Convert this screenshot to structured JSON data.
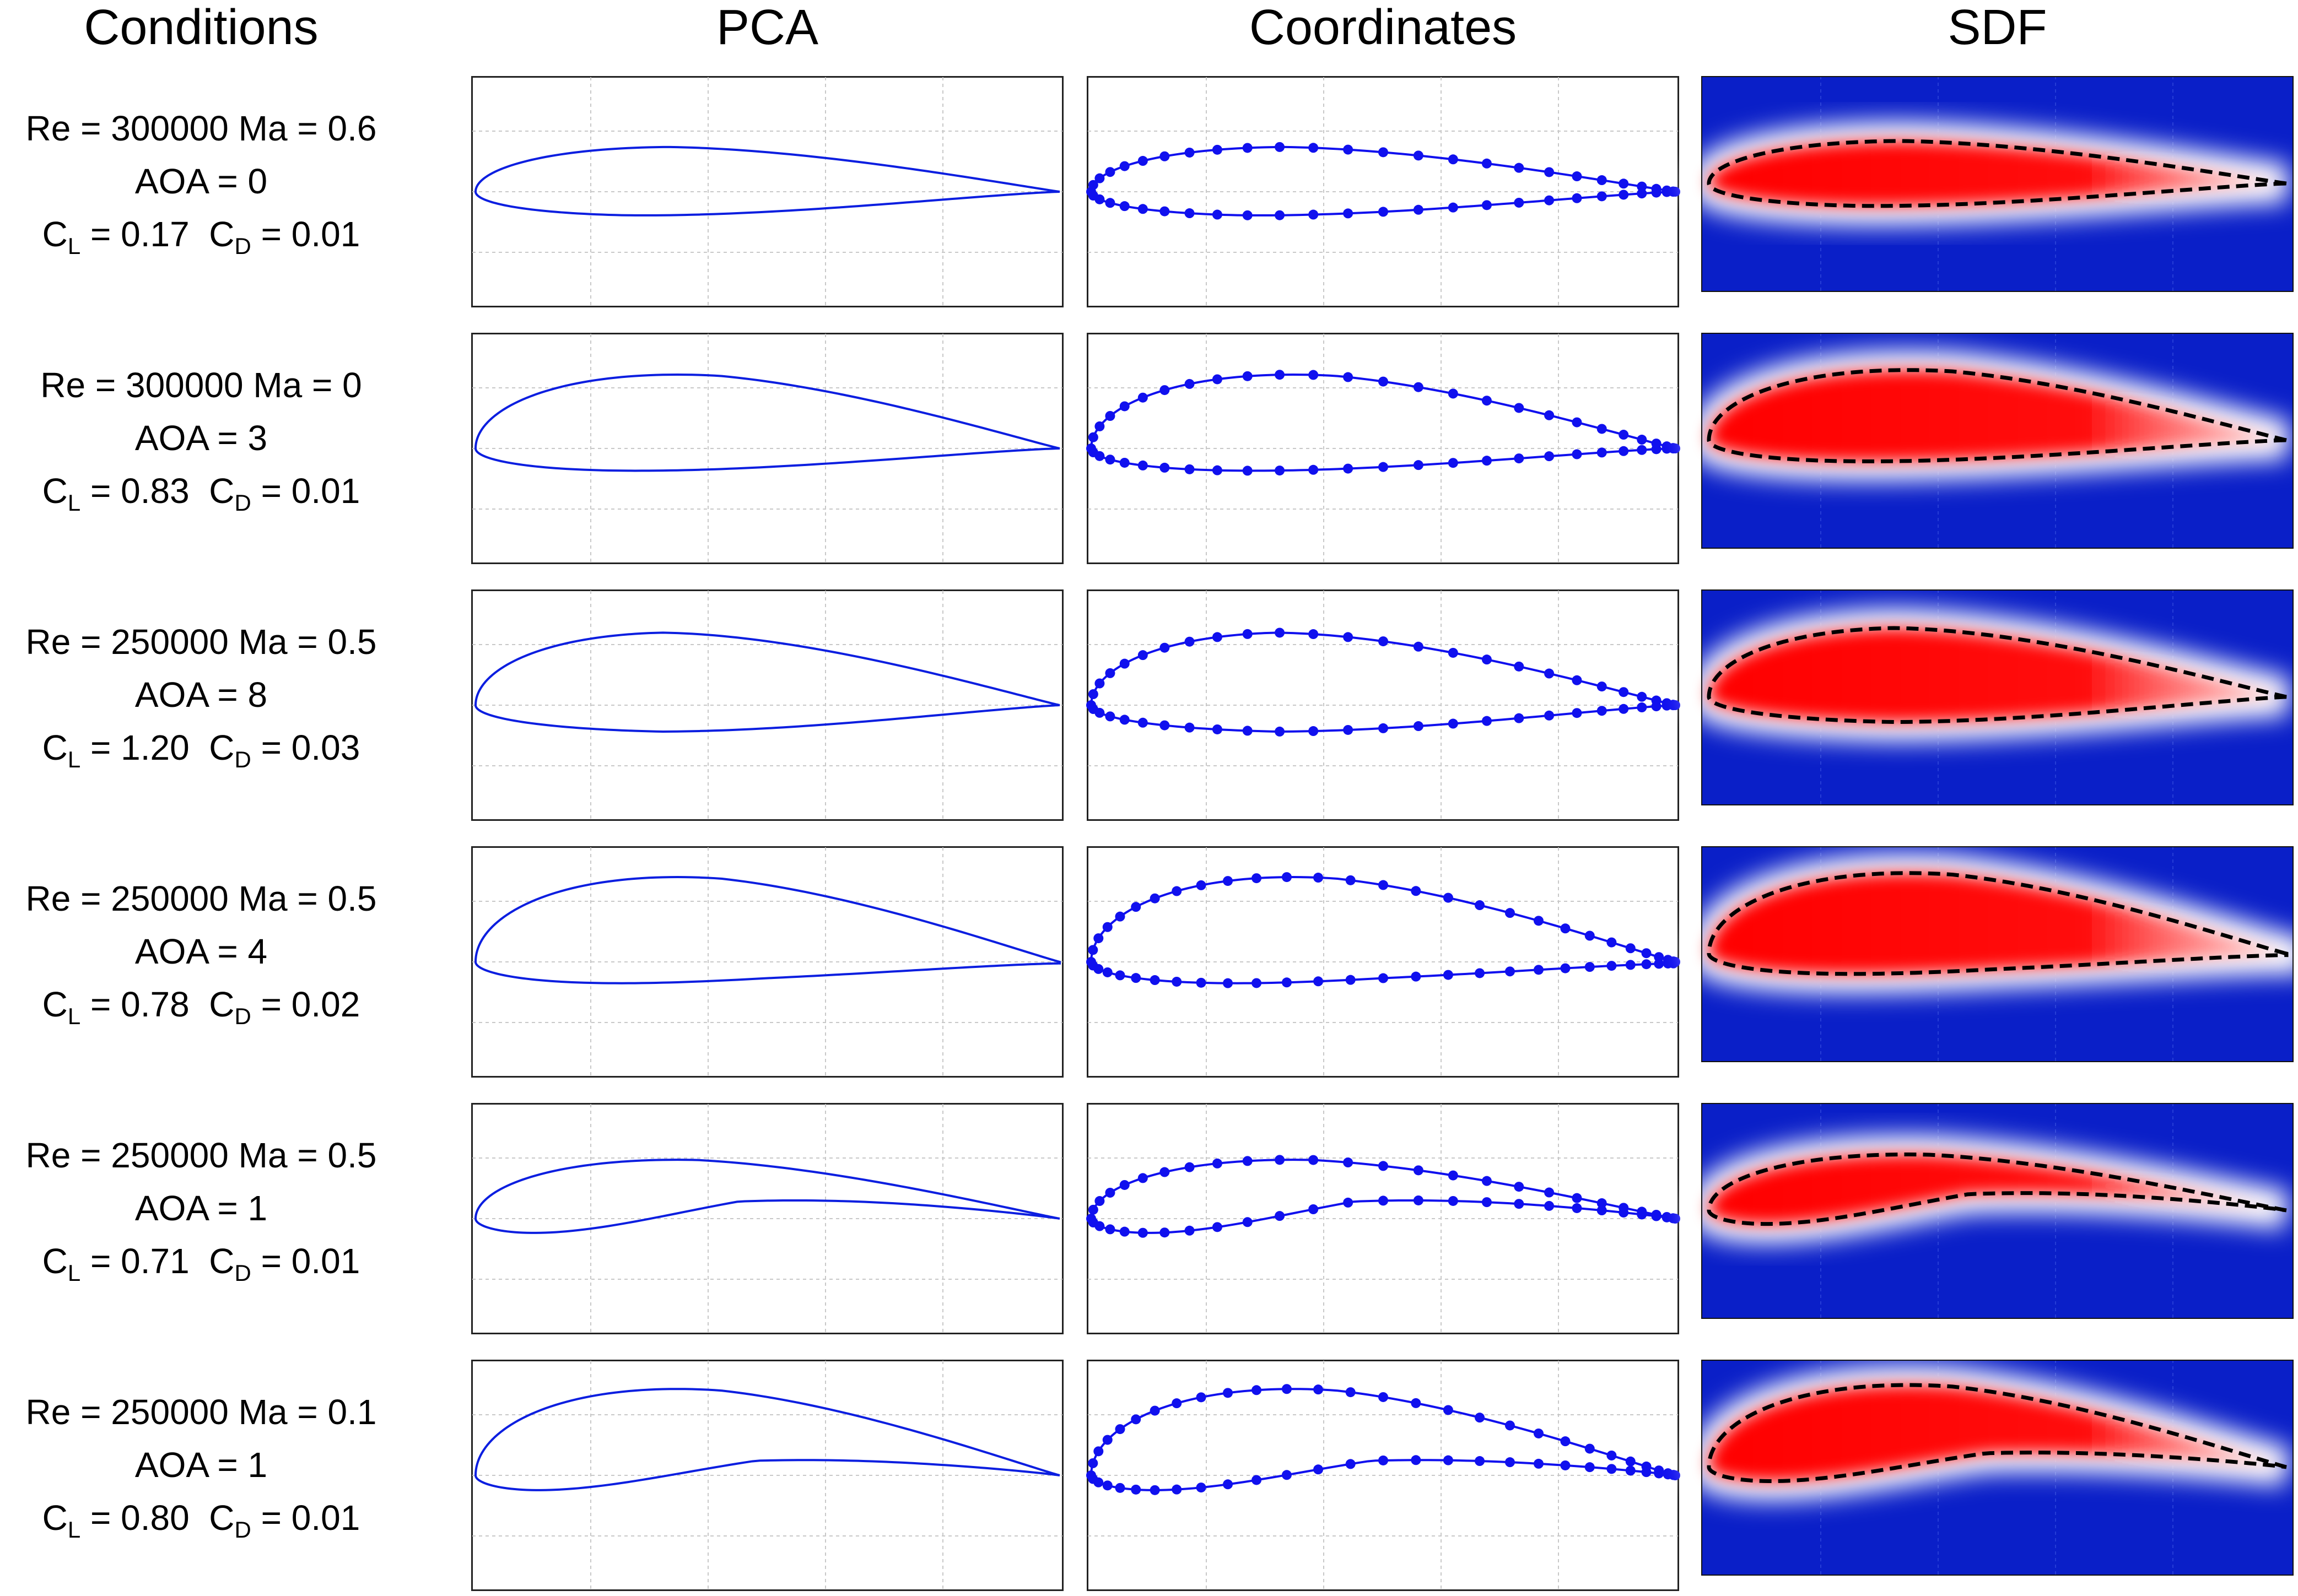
{
  "headers": {
    "conditions": "Conditions",
    "pca": "PCA",
    "coordinates": "Coordinates",
    "sdf": "SDF"
  },
  "colors": {
    "curve": "#0b1ee0",
    "points": "#1010ee",
    "sdf_background": "#0a1fc8",
    "sdf_fill": "#ff0000",
    "contour": "#000000",
    "grid": "#c8c8c8"
  },
  "rows": [
    {
      "re_ma": "Re = 300000  Ma = 0.6",
      "aoa": "AOA = 0",
      "cl": "0.17",
      "cd": "0.01",
      "shape": {
        "upper_peak": 0.145,
        "upper_pos": 0.33,
        "lower_peak": -0.075,
        "lower_pos": 0.25,
        "lower_te": 0.0,
        "le_y": 0.0,
        "points": 52
      }
    },
    {
      "re_ma": "Re = 300000  Ma = 0",
      "aoa": "AOA = 3",
      "cl": "0.83",
      "cd": "0.01",
      "shape": {
        "upper_peak": 0.235,
        "upper_pos": 0.42,
        "lower_peak": -0.07,
        "lower_pos": 0.18,
        "lower_te": 0.0,
        "le_y": 0.0,
        "points": 52
      }
    },
    {
      "re_ma": "Re = 250000  Ma = 0.5",
      "aoa": "AOA = 8",
      "cl": "1.20",
      "cd": "0.03",
      "shape": {
        "upper_peak": 0.235,
        "upper_pos": 0.32,
        "lower_peak": -0.085,
        "lower_pos": 0.32,
        "lower_te": 0.0,
        "le_y": 0.0,
        "points": 52
      }
    },
    {
      "re_ma": "Re = 250000  Ma = 0.5",
      "aoa": "AOA = 4",
      "cl": "0.78",
      "cd": "0.02",
      "shape": {
        "upper_peak": 0.27,
        "upper_pos": 0.42,
        "lower_peak": -0.06,
        "lower_pos": 0.5,
        "lower_te": -0.005,
        "le_y": 0.0,
        "points": 56
      }
    },
    {
      "re_ma": "Re = 250000  Ma = 0.5",
      "aoa": "AOA = 1",
      "cl": "0.71",
      "cd": "0.01",
      "shape": {
        "upper_peak": 0.19,
        "upper_pos": 0.38,
        "lower_peak": 0.05,
        "lower_pos": 0.45,
        "lower_te": 0.0,
        "le_y": 0.0,
        "points": 52
      }
    },
    {
      "re_ma": "Re = 250000  Ma = 0.1",
      "aoa": "AOA = 1",
      "cl": "0.80",
      "cd": "0.01",
      "shape": {
        "upper_peak": 0.275,
        "upper_pos": 0.42,
        "lower_peak": 0.04,
        "lower_pos": 0.48,
        "lower_te": 0.0,
        "le_y": 0.0,
        "points": 56
      }
    }
  ]
}
